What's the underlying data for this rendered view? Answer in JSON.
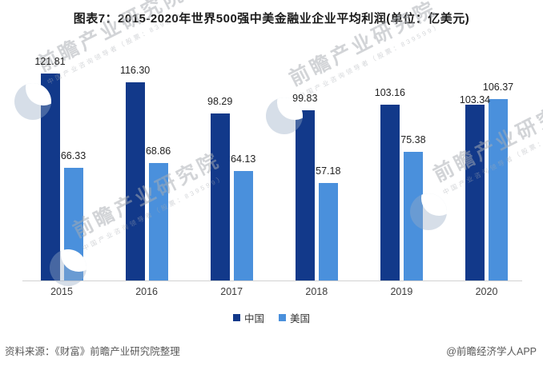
{
  "title": "图表7：2015-2020年世界500强中美金融业企业平均利润(单位：亿美元)",
  "chart_data": {
    "type": "bar",
    "categories": [
      "2015",
      "2016",
      "2017",
      "2018",
      "2019",
      "2020"
    ],
    "series": [
      {
        "name": "中国",
        "color": "#12398a",
        "values": [
          121.81,
          116.3,
          98.29,
          99.83,
          103.16,
          103.34
        ]
      },
      {
        "name": "美国",
        "color": "#4a90dc",
        "values": [
          66.33,
          68.86,
          64.13,
          57.18,
          75.38,
          106.37
        ]
      }
    ],
    "title": "图表7：2015-2020年世界500强中美金融业企业平均利润(单位：亿美元)",
    "xlabel": "",
    "ylabel": "",
    "unit": "亿美元",
    "ylim": [
      0,
      135
    ],
    "grid": false,
    "legend_position": "bottom",
    "value_labels": true,
    "value_label_format": "0.00"
  },
  "footer": {
    "source": "资料来源：《财富》前瞻产业研究院整理",
    "credit": "@前瞻经济学人APP"
  },
  "watermark": {
    "text": "前瞻产业研究院",
    "subtext": "中国产业咨询领导者（股票：839599）"
  },
  "colors": {
    "china_bar": "#12398a",
    "usa_bar": "#4a90dc",
    "axis_line": "#d2d2d2",
    "value_label": "#222222",
    "tick_label": "#3d3d3d",
    "footer_text": "#595959",
    "background": "#ffffff"
  }
}
